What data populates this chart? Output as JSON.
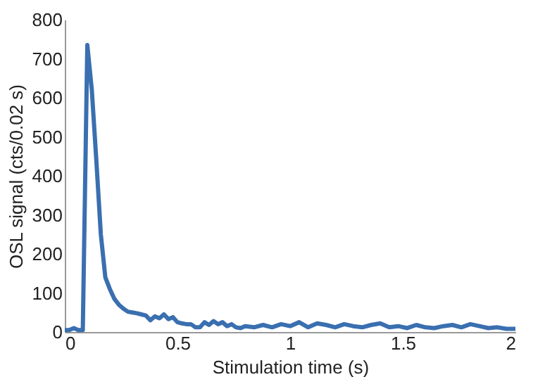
{
  "chart_data": {
    "type": "line",
    "xlabel": "Stimulation time (s)",
    "ylabel": "OSL signal (cts/0.02 s)",
    "xlim": [
      0,
      2
    ],
    "ylim": [
      0,
      800
    ],
    "xticks": [
      0,
      0.5,
      1,
      1.5,
      2
    ],
    "yticks": [
      0,
      100,
      200,
      300,
      400,
      500,
      600,
      700,
      800
    ],
    "grid": false,
    "line_style": "solid",
    "series": [
      {
        "color": "#3a6fb0",
        "x": [
          0,
          0.02,
          0.04,
          0.06,
          0.08,
          0.1,
          0.12,
          0.14,
          0.16,
          0.18,
          0.2,
          0.22,
          0.24,
          0.26,
          0.28,
          0.3,
          0.32,
          0.34,
          0.36,
          0.38,
          0.4,
          0.42,
          0.44,
          0.46,
          0.48,
          0.5,
          0.52,
          0.54,
          0.56,
          0.58,
          0.6,
          0.62,
          0.64,
          0.66,
          0.68,
          0.7,
          0.72,
          0.74,
          0.76,
          0.78,
          0.8,
          0.84,
          0.88,
          0.92,
          0.96,
          1.0,
          1.04,
          1.08,
          1.12,
          1.16,
          1.2,
          1.24,
          1.28,
          1.32,
          1.36,
          1.4,
          1.44,
          1.48,
          1.52,
          1.56,
          1.6,
          1.64,
          1.68,
          1.72,
          1.76,
          1.8,
          1.84,
          1.88,
          1.92,
          1.96,
          2.0
        ],
        "values": [
          5,
          5,
          10,
          5,
          5,
          735,
          620,
          440,
          250,
          140,
          110,
          85,
          70,
          60,
          52,
          50,
          48,
          45,
          42,
          30,
          40,
          35,
          45,
          33,
          38,
          25,
          22,
          20,
          20,
          12,
          12,
          25,
          18,
          28,
          20,
          25,
          15,
          20,
          12,
          10,
          15,
          12,
          18,
          12,
          20,
          15,
          25,
          12,
          22,
          18,
          12,
          20,
          15,
          12,
          18,
          22,
          12,
          15,
          10,
          18,
          12,
          10,
          15,
          18,
          12,
          20,
          15,
          10,
          12,
          8,
          8
        ]
      }
    ]
  }
}
